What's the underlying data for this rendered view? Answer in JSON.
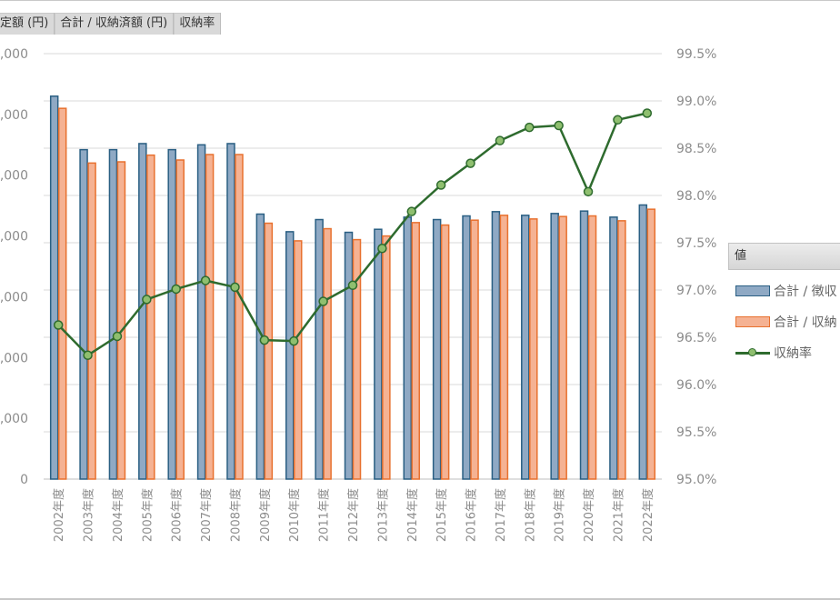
{
  "field_buttons": [
    {
      "label": "定額 (円)"
    },
    {
      "label": "合計 / 収納済額 (円)"
    },
    {
      "label": "収納率"
    }
  ],
  "legend": {
    "title": "値",
    "items": [
      {
        "label": "合計 / 徴収"
      },
      {
        "label": "合計 / 収納"
      },
      {
        "label": "収納率"
      }
    ]
  },
  "colors": {
    "bar1_fill": "#8fa9c4",
    "bar1_stroke": "#2a5f83",
    "bar2_fill": "#f5b293",
    "bar2_stroke": "#e8712f",
    "line": "#2e6b2e",
    "marker_fill": "#8fbf6f",
    "grid": "#d9d9d9",
    "axis_text": "#8c8c8c"
  },
  "chart_data": {
    "type": "bar+line",
    "categories": [
      "2002年度",
      "2003年度",
      "2004年度",
      "2005年度",
      "2006年度",
      "2007年度",
      "2008年度",
      "2009年度",
      "2010年度",
      "2011年度",
      "2012年度",
      "2013年度",
      "2014年度",
      "2015年度",
      "2016年度",
      "2017年度",
      "2018年度",
      "2019年度",
      "2020年度",
      "2021年度",
      "2022年度"
    ],
    "series": [
      {
        "name": "合計 / 徴収",
        "type": "bar",
        "axis": "left",
        "values": [
          6.3,
          5.42,
          5.42,
          5.52,
          5.42,
          5.5,
          5.52,
          4.36,
          4.07,
          4.27,
          4.06,
          4.11,
          4.31,
          4.27,
          4.33,
          4.4,
          4.34,
          4.37,
          4.41,
          4.31,
          4.51
        ]
      },
      {
        "name": "合計 / 収納",
        "type": "bar",
        "axis": "left",
        "values": [
          6.1,
          5.2,
          5.22,
          5.33,
          5.25,
          5.34,
          5.34,
          4.21,
          3.92,
          4.12,
          3.94,
          4.0,
          4.22,
          4.18,
          4.26,
          4.34,
          4.28,
          4.32,
          4.33,
          4.25,
          4.44
        ]
      },
      {
        "name": "収納率",
        "type": "line",
        "axis": "right",
        "values": [
          96.63,
          96.31,
          96.51,
          96.9,
          97.01,
          97.1,
          97.03,
          96.47,
          96.46,
          96.88,
          97.05,
          97.44,
          97.83,
          98.11,
          98.34,
          98.58,
          98.72,
          98.74,
          98.04,
          98.8,
          98.87
        ]
      }
    ],
    "left_axis": {
      "ticks": [
        "0",
        ",000",
        ",000",
        ",000",
        ",000",
        ",000",
        ",000",
        ",000"
      ],
      "ylim": [
        0,
        7
      ]
    },
    "right_axis": {
      "ticks": [
        "95.0%",
        "95.5%",
        "96.0%",
        "96.5%",
        "97.0%",
        "97.5%",
        "98.0%",
        "98.5%",
        "99.0%",
        "99.5%"
      ],
      "ylim": [
        95.0,
        99.5
      ]
    },
    "grid": true,
    "legend_position": "right"
  }
}
